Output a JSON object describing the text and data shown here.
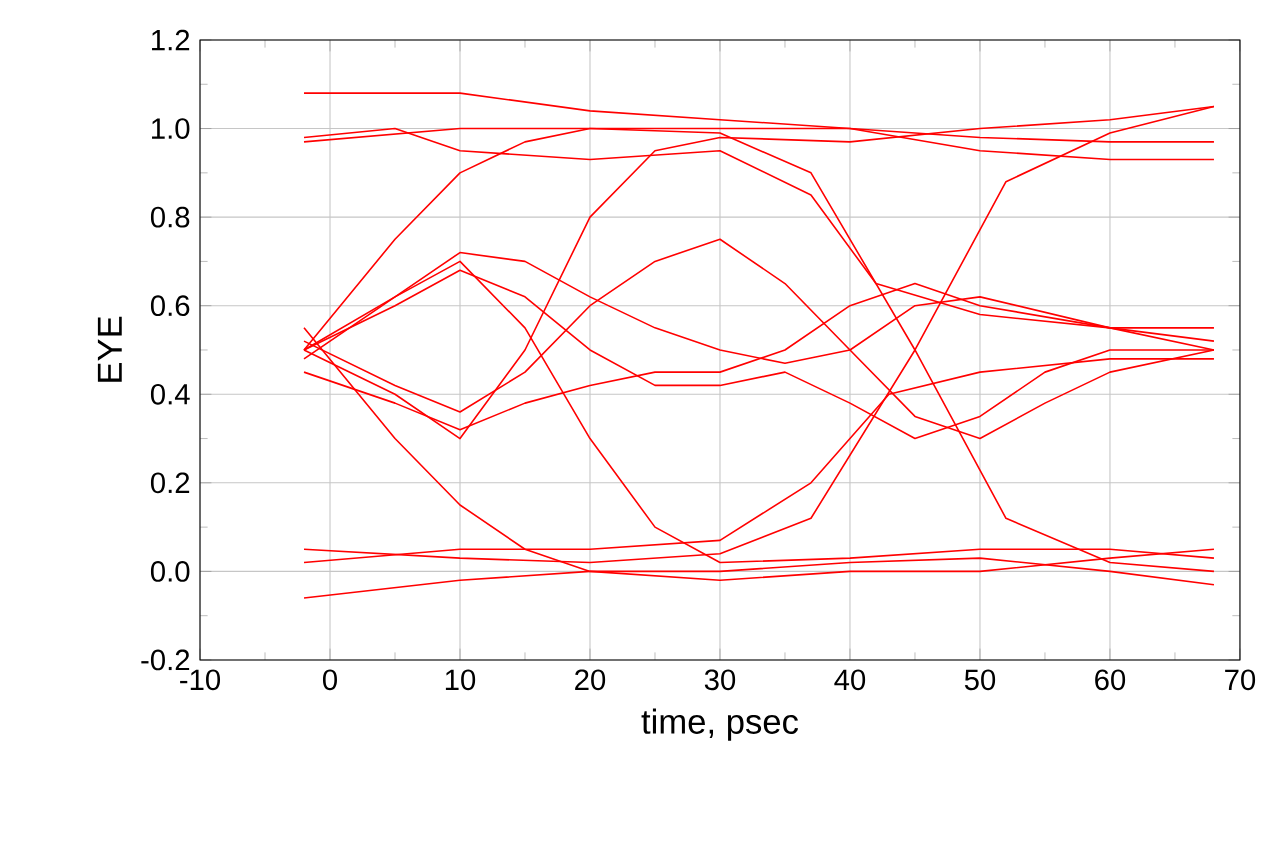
{
  "chart_data": {
    "type": "line",
    "xlabel": "time, psec",
    "ylabel": "EYE",
    "xlim": [
      -10,
      70
    ],
    "ylim": [
      -0.2,
      1.2
    ],
    "xticks": [
      -10,
      0,
      10,
      20,
      30,
      40,
      50,
      60,
      70
    ],
    "yticks": [
      {
        "value": -0.2,
        "label": "-0.2"
      },
      {
        "value": 0,
        "label": "0.0"
      },
      {
        "value": 0.2,
        "label": "0.2"
      },
      {
        "value": 0.4,
        "label": "0.4"
      },
      {
        "value": 0.6,
        "label": "0.6"
      },
      {
        "value": 0.8,
        "label": "0.8"
      },
      {
        "value": 1,
        "label": "1.0"
      },
      {
        "value": 1.2,
        "label": "1.2"
      }
    ],
    "grid": true,
    "marker": "none",
    "line_style": "solid",
    "series": [
      {
        "color": "#ff0000",
        "x": [
          -2,
          10,
          20,
          30,
          40,
          50,
          60,
          68
        ],
        "values": [
          1.08,
          1.08,
          1.04,
          1.02,
          1.0,
          0.98,
          0.97,
          0.97
        ]
      },
      {
        "color": "#ff0000",
        "x": [
          -2,
          10,
          20,
          30,
          37,
          45,
          52,
          60,
          68
        ],
        "values": [
          0.97,
          1.0,
          1.0,
          0.99,
          0.9,
          0.5,
          0.12,
          0.02,
          0.0
        ]
      },
      {
        "color": "#ff0000",
        "x": [
          -2,
          10,
          20,
          30,
          37,
          45,
          52,
          60,
          68
        ],
        "values": [
          0.05,
          0.03,
          0.02,
          0.04,
          0.12,
          0.5,
          0.88,
          0.99,
          1.05
        ]
      },
      {
        "color": "#ff0000",
        "x": [
          -2,
          10,
          20,
          30,
          40,
          50,
          60,
          68
        ],
        "values": [
          -0.06,
          -0.02,
          0.0,
          0.0,
          0.02,
          0.03,
          0.0,
          -0.03
        ]
      },
      {
        "color": "#ff0000",
        "x": [
          -2,
          5,
          10,
          15,
          20,
          25,
          30,
          35,
          40,
          45,
          50,
          60,
          68
        ],
        "values": [
          0.5,
          0.62,
          0.72,
          0.7,
          0.62,
          0.55,
          0.5,
          0.47,
          0.5,
          0.6,
          0.62,
          0.55,
          0.5
        ]
      },
      {
        "color": "#ff0000",
        "x": [
          -2,
          5,
          10,
          15,
          20,
          25,
          30,
          35,
          40,
          45,
          50,
          60,
          68
        ],
        "values": [
          0.45,
          0.38,
          0.32,
          0.38,
          0.42,
          0.45,
          0.45,
          0.5,
          0.6,
          0.65,
          0.6,
          0.55,
          0.52
        ]
      },
      {
        "color": "#ff0000",
        "x": [
          -2,
          5,
          10,
          15,
          20,
          30,
          40,
          50,
          60,
          68
        ],
        "values": [
          0.5,
          0.75,
          0.9,
          0.97,
          1.0,
          1.0,
          1.0,
          0.95,
          0.93,
          0.93
        ]
      },
      {
        "color": "#ff0000",
        "x": [
          -2,
          5,
          10,
          15,
          20,
          30,
          40,
          50,
          60,
          68
        ],
        "values": [
          0.55,
          0.3,
          0.15,
          0.05,
          0.0,
          -0.02,
          0.0,
          0.0,
          0.03,
          0.05
        ]
      },
      {
        "color": "#ff0000",
        "x": [
          -2,
          5,
          10,
          15,
          20,
          25,
          30,
          35,
          40,
          45,
          50,
          55,
          60,
          68
        ],
        "values": [
          0.5,
          0.6,
          0.68,
          0.62,
          0.5,
          0.42,
          0.42,
          0.45,
          0.38,
          0.3,
          0.35,
          0.45,
          0.5,
          0.5
        ]
      },
      {
        "color": "#ff0000",
        "x": [
          -2,
          5,
          10,
          15,
          20,
          25,
          30,
          35,
          40,
          45,
          50,
          55,
          60,
          68
        ],
        "values": [
          0.52,
          0.42,
          0.36,
          0.45,
          0.6,
          0.7,
          0.75,
          0.65,
          0.5,
          0.35,
          0.3,
          0.38,
          0.45,
          0.5
        ]
      },
      {
        "color": "#ff0000",
        "x": [
          -2,
          5,
          10,
          15,
          20,
          25,
          30,
          40,
          50,
          60,
          68
        ],
        "values": [
          0.48,
          0.62,
          0.7,
          0.55,
          0.3,
          0.1,
          0.02,
          0.03,
          0.05,
          0.05,
          0.03
        ]
      },
      {
        "color": "#ff0000",
        "x": [
          -2,
          5,
          10,
          15,
          20,
          25,
          30,
          40,
          50,
          60,
          68
        ],
        "values": [
          0.5,
          0.4,
          0.3,
          0.5,
          0.8,
          0.95,
          0.98,
          0.97,
          1.0,
          1.02,
          1.05
        ]
      },
      {
        "color": "#ff0000",
        "x": [
          -2,
          5,
          10,
          20,
          30,
          37,
          42,
          50,
          60,
          68
        ],
        "values": [
          0.98,
          1.0,
          0.95,
          0.93,
          0.95,
          0.85,
          0.65,
          0.58,
          0.55,
          0.55
        ]
      },
      {
        "color": "#ff0000",
        "x": [
          -2,
          10,
          20,
          30,
          37,
          43,
          50,
          60,
          68
        ],
        "values": [
          0.02,
          0.05,
          0.05,
          0.07,
          0.2,
          0.4,
          0.45,
          0.48,
          0.48
        ]
      }
    ]
  }
}
